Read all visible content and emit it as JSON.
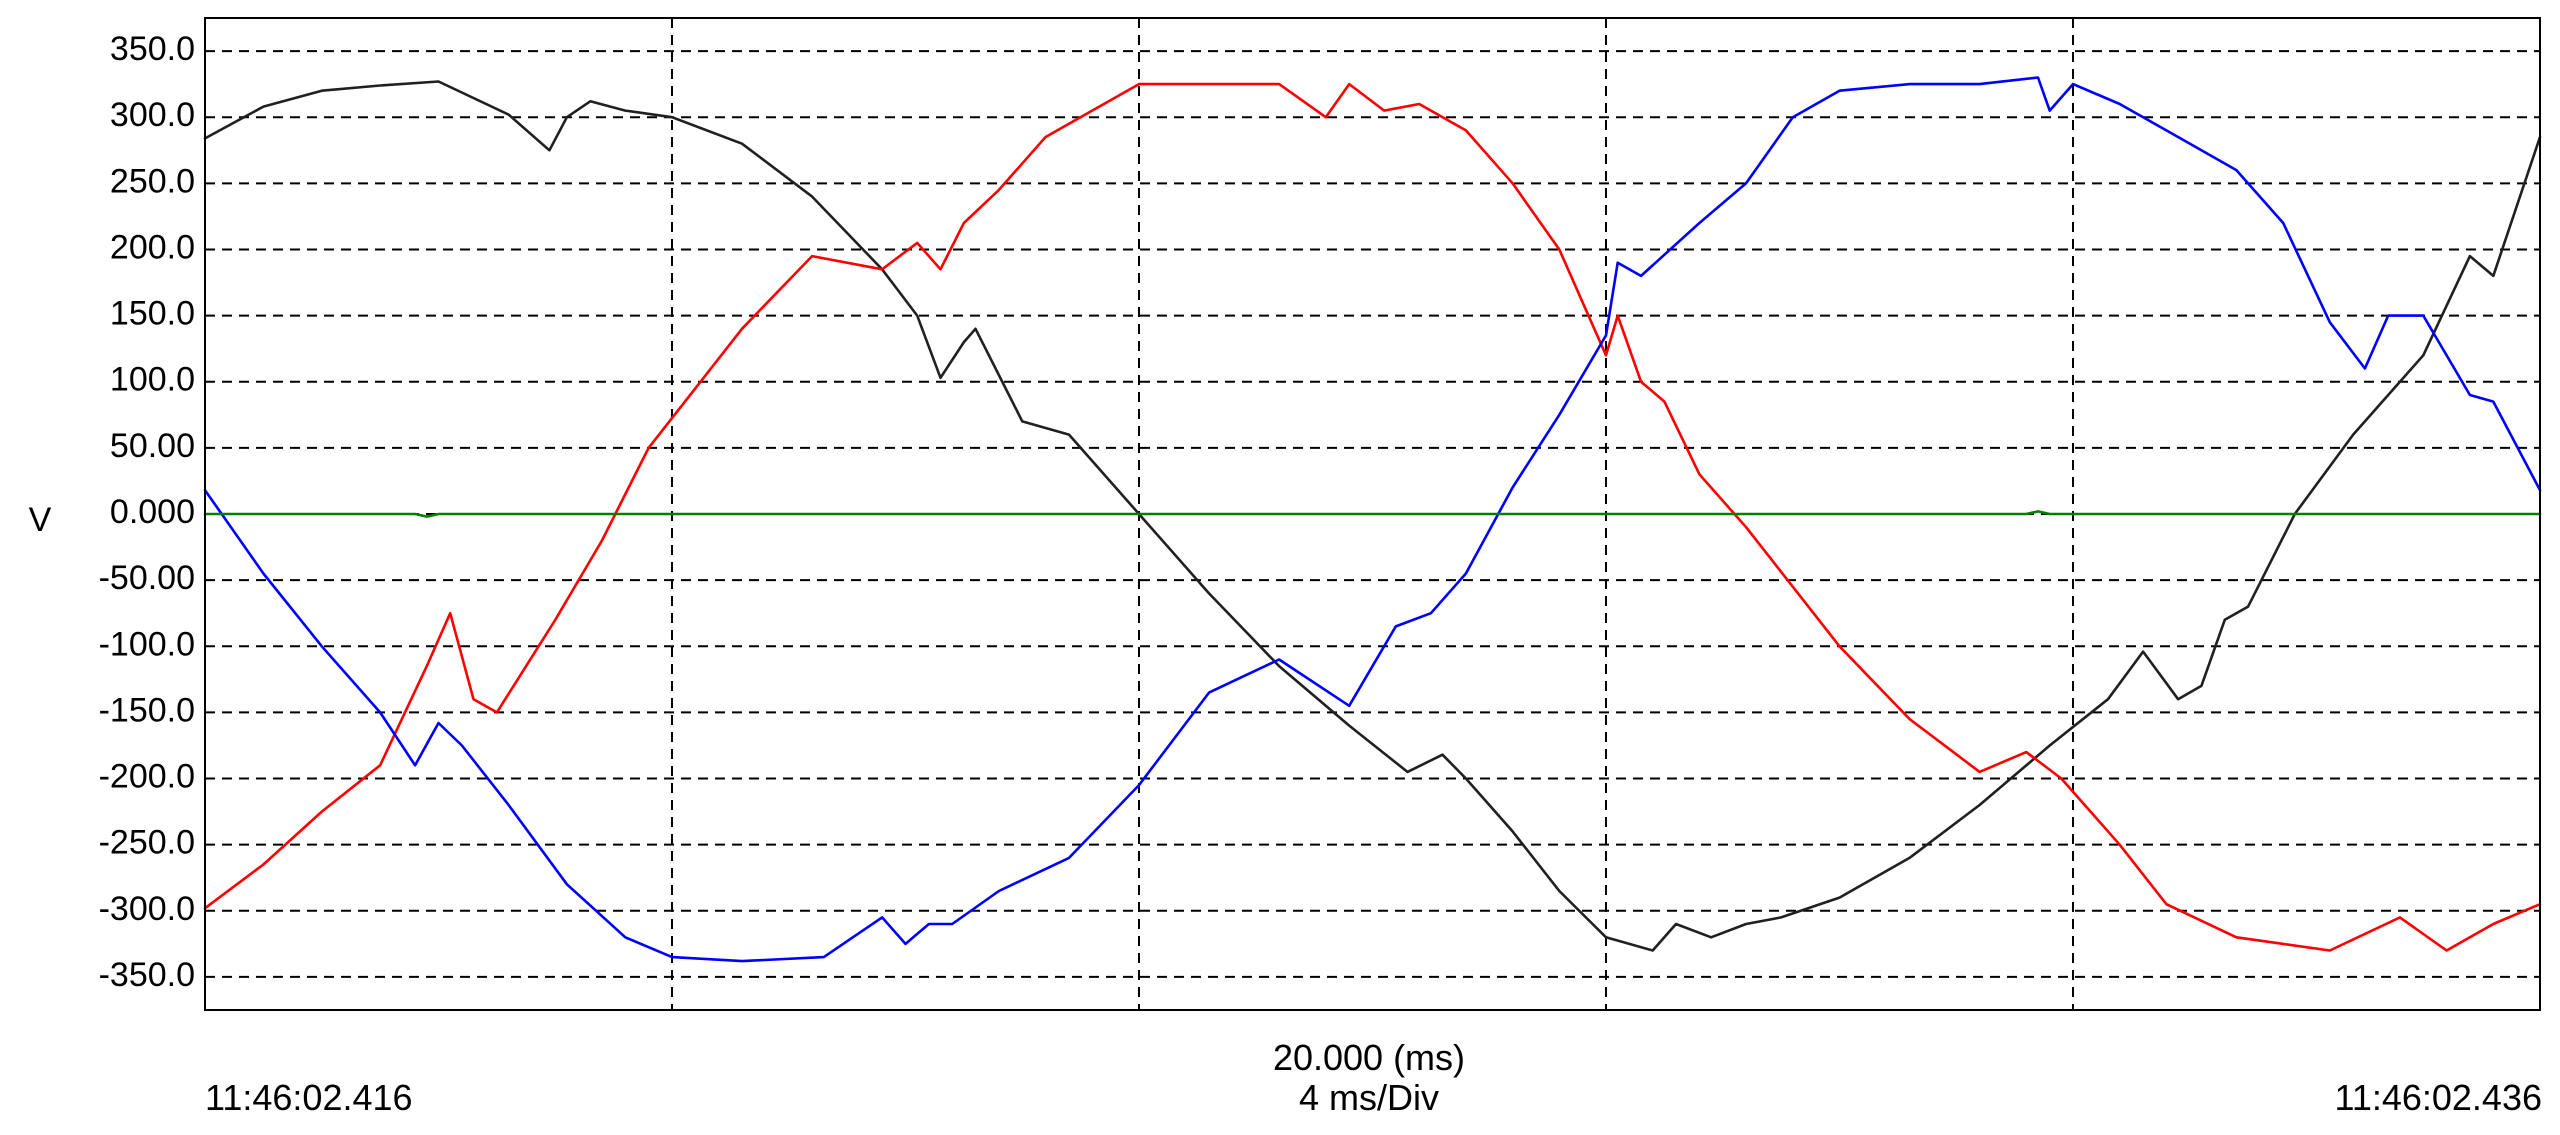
{
  "chart_data": {
    "type": "line",
    "ylabel": "V",
    "ylim": [
      -375,
      375
    ],
    "yticks": [
      350,
      300,
      250,
      200,
      150,
      100,
      50,
      0,
      -50,
      -100,
      -150,
      -200,
      -250,
      -300,
      -350
    ],
    "ytick_labels": [
      "350.0",
      "300.0",
      "250.0",
      "200.0",
      "150.0",
      "100.0",
      "50.00",
      "0.000",
      "-50.00",
      "-100.0",
      "-150.0",
      "-200.0",
      "-250.0",
      "-300.0",
      "-350.0"
    ],
    "xlim": [
      0,
      20
    ],
    "x_divisions": [
      4,
      8,
      12,
      16
    ],
    "grid": true,
    "x_start_label": "11:46:02.416",
    "x_end_label": "11:46:02.436",
    "x_span_label": "20.000 (ms)",
    "x_div_label": "4 ms/Div",
    "colors": {
      "black": "#202020",
      "red": "#ff0000",
      "blue": "#0000ff",
      "green": "#008000",
      "grid": "#000000"
    },
    "series": [
      {
        "color": "#202020",
        "x": [
          0,
          0.5,
          1,
          1.5,
          2,
          2.6,
          2.95,
          3.1,
          3.3,
          3.6,
          4,
          4.6,
          5.2,
          5.8,
          6.1,
          6.3,
          6.5,
          6.6,
          7,
          7.4,
          8,
          8.6,
          9.2,
          9.8,
          10.3,
          10.6,
          10.8,
          11.2,
          11.6,
          12,
          12.4,
          12.6,
          12.9,
          13.2,
          13.5,
          14,
          14.6,
          15.2,
          15.8,
          16.3,
          16.6,
          16.9,
          17.1,
          17.3,
          17.5,
          17.9,
          18.4,
          19,
          19.4,
          19.6,
          20
        ],
        "y": [
          284,
          308,
          320,
          324,
          327,
          302,
          275,
          300,
          312,
          305,
          300,
          280,
          240,
          185,
          150,
          103,
          130,
          140,
          70,
          60,
          0,
          -60,
          -115,
          -160,
          -195,
          -182,
          -200,
          -240,
          -285,
          -320,
          -330,
          -310,
          -320,
          -310,
          -305,
          -290,
          -260,
          -220,
          -175,
          -140,
          -104,
          -140,
          -130,
          -80,
          -70,
          0,
          60,
          120,
          195,
          180,
          285
        ]
      },
      {
        "color": "#ff0000",
        "x": [
          0,
          0.5,
          1,
          1.5,
          1.9,
          2.1,
          2.3,
          2.5,
          3,
          3.4,
          3.8,
          4.2,
          4.6,
          5.2,
          5.8,
          6.1,
          6.3,
          6.5,
          6.8,
          7.2,
          8,
          8.6,
          9.2,
          9.6,
          9.8,
          10.1,
          10.4,
          10.8,
          11.2,
          11.6,
          12.0,
          12.1,
          12.3,
          12.5,
          12.8,
          13.2,
          14,
          14.6,
          15.2,
          15.6,
          15.9,
          16.1,
          16.4,
          16.8,
          17.4,
          18.2,
          18.8,
          19.2,
          19.6,
          20
        ],
        "y": [
          -298,
          -265,
          -225,
          -190,
          -115,
          -75,
          -140,
          -150,
          -80,
          -20,
          50,
          95,
          140,
          195,
          185,
          205,
          185,
          220,
          245,
          285,
          325,
          325,
          325,
          300,
          325,
          305,
          310,
          290,
          250,
          200,
          120,
          150,
          100,
          85,
          30,
          -10,
          -100,
          -155,
          -195,
          -180,
          -200,
          -220,
          -250,
          -295,
          -320,
          -330,
          -305,
          -330,
          -310,
          -295
        ]
      },
      {
        "color": "#0000ff",
        "x": [
          0,
          0.5,
          1,
          1.5,
          1.8,
          2.0,
          2.2,
          2.6,
          3.1,
          3.6,
          4,
          4.6,
          5.3,
          5.8,
          6,
          6.2,
          6.4,
          6.8,
          7.4,
          8,
          8.6,
          9.2,
          9.8,
          10.2,
          10.5,
          10.8,
          11.2,
          11.6,
          12.0,
          12.1,
          12.3,
          12.8,
          13.2,
          13.6,
          14,
          14.6,
          15.2,
          15.7,
          15.8,
          16,
          16.4,
          16.8,
          17.4,
          17.8,
          18.2,
          18.5,
          18.7,
          19.0,
          19.4,
          19.6,
          20
        ],
        "y": [
          18,
          -45,
          -100,
          -150,
          -190,
          -158,
          -175,
          -220,
          -280,
          -320,
          -335,
          -338,
          -335,
          -305,
          -325,
          -310,
          -310,
          -285,
          -260,
          -205,
          -135,
          -110,
          -145,
          -85,
          -75,
          -45,
          20,
          75,
          135,
          190,
          180,
          220,
          250,
          300,
          320,
          325,
          325,
          330,
          305,
          325,
          310,
          290,
          260,
          220,
          145,
          110,
          150,
          150,
          90,
          85,
          18
        ]
      },
      {
        "color": "#008000",
        "x": [
          0,
          1.8,
          1.9,
          2.0,
          15.6,
          15.7,
          15.8,
          20
        ],
        "y": [
          0,
          0,
          -2,
          0,
          0,
          2,
          0,
          0
        ]
      }
    ]
  }
}
